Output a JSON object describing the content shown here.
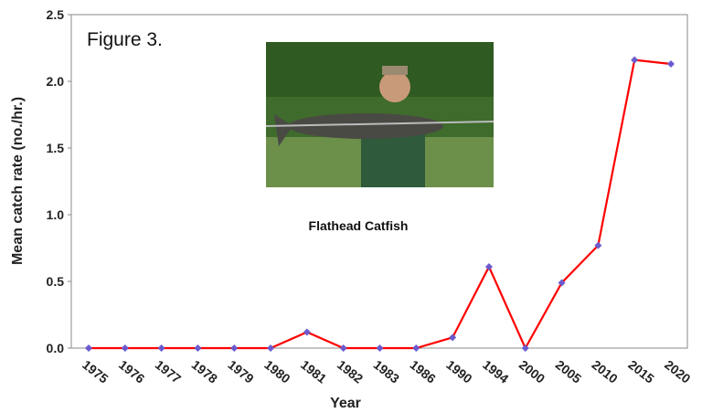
{
  "chart_data": {
    "type": "line",
    "title": "Figure 3.",
    "annotation": "Flathead Catfish",
    "x_label": "Year",
    "y_label": "Mean catch rate (no./hr.)",
    "categories": [
      "1975",
      "1976",
      "1977",
      "1978",
      "1979",
      "1980",
      "1981",
      "1982",
      "1983",
      "1986",
      "1990",
      "1994",
      "2000",
      "2005",
      "2010",
      "2015",
      "2020"
    ],
    "series": [
      {
        "name": "Flathead Catfish",
        "color": "#ff0000",
        "marker_color": "#6a5acd",
        "values": [
          0,
          0,
          0,
          0,
          0,
          0,
          0.12,
          0,
          0,
          0,
          0.08,
          0.61,
          0,
          0.49,
          0.77,
          2.16,
          2.13
        ]
      }
    ],
    "ylim": [
      0,
      2.5
    ],
    "yticks": [
      {
        "value": 0,
        "label": "0.0"
      },
      {
        "value": 0.5,
        "label": "0.5"
      },
      {
        "value": 1,
        "label": "1.0"
      },
      {
        "value": 1.5,
        "label": "1.5"
      },
      {
        "value": 2,
        "label": "2.0"
      },
      {
        "value": 2.5,
        "label": "2.5"
      }
    ]
  }
}
